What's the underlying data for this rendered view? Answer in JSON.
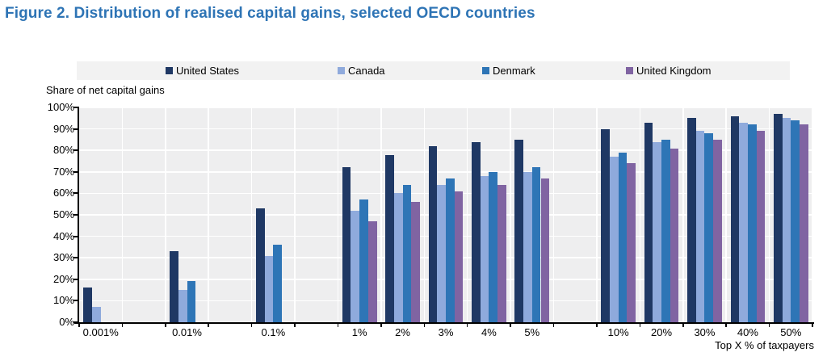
{
  "title": "Figure 2. Distribution of realised capital gains, selected OECD countries",
  "colors": {
    "title": "#2E74B5",
    "plot_background": "#EEEEEF",
    "gridline": "#FFFFFF",
    "axis": "#000000",
    "legend_background": "#F2F2F2",
    "united_states": "#1F3864",
    "canada": "#8FAADC",
    "denmark": "#2E75B6",
    "united_kingdom": "#8064A2"
  },
  "chart_data": {
    "type": "bar",
    "title": "Figure 2. Distribution of realised capital gains, selected OECD countries",
    "y_axis_title": "Share of net capital gains",
    "x_axis_title": "Top X % of taxpayers",
    "ylim": [
      0,
      100
    ],
    "y_tick_step": 10,
    "y_tick_labels": [
      "0%",
      "10%",
      "20%",
      "30%",
      "40%",
      "50%",
      "60%",
      "70%",
      "80%",
      "90%",
      "100%"
    ],
    "grid": true,
    "legend_position": "top",
    "categories": [
      "0.001%",
      "0.01%",
      "0.1%",
      "1%",
      "2%",
      "3%",
      "4%",
      "5%",
      "10%",
      "20%",
      "30%",
      "40%",
      "50%"
    ],
    "series": [
      {
        "name": "United States",
        "color": "#1F3864",
        "values": [
          16,
          33,
          53,
          72,
          78,
          82,
          84,
          85,
          90,
          93,
          95,
          96,
          97
        ]
      },
      {
        "name": "Canada",
        "color": "#8FAADC",
        "values": [
          7,
          15,
          31,
          52,
          60,
          64,
          68,
          70,
          77,
          84,
          89,
          93,
          95
        ]
      },
      {
        "name": "Denmark",
        "color": "#2E75B6",
        "values": [
          null,
          19,
          36,
          57,
          64,
          67,
          70,
          72,
          79,
          85,
          88,
          92,
          94
        ]
      },
      {
        "name": "United Kingdom",
        "color": "#8064A2",
        "values": [
          null,
          null,
          null,
          47,
          56,
          61,
          64,
          67,
          74,
          81,
          85,
          89,
          92
        ]
      }
    ],
    "layout_hints": {
      "category_slots": [
        0,
        2,
        4,
        6,
        7,
        8,
        9,
        10,
        12,
        13,
        14,
        15,
        16
      ],
      "total_slots": 17,
      "bars_per_group": 4,
      "legend_item_offsets": [
        110,
        323,
        502,
        680
      ]
    }
  }
}
